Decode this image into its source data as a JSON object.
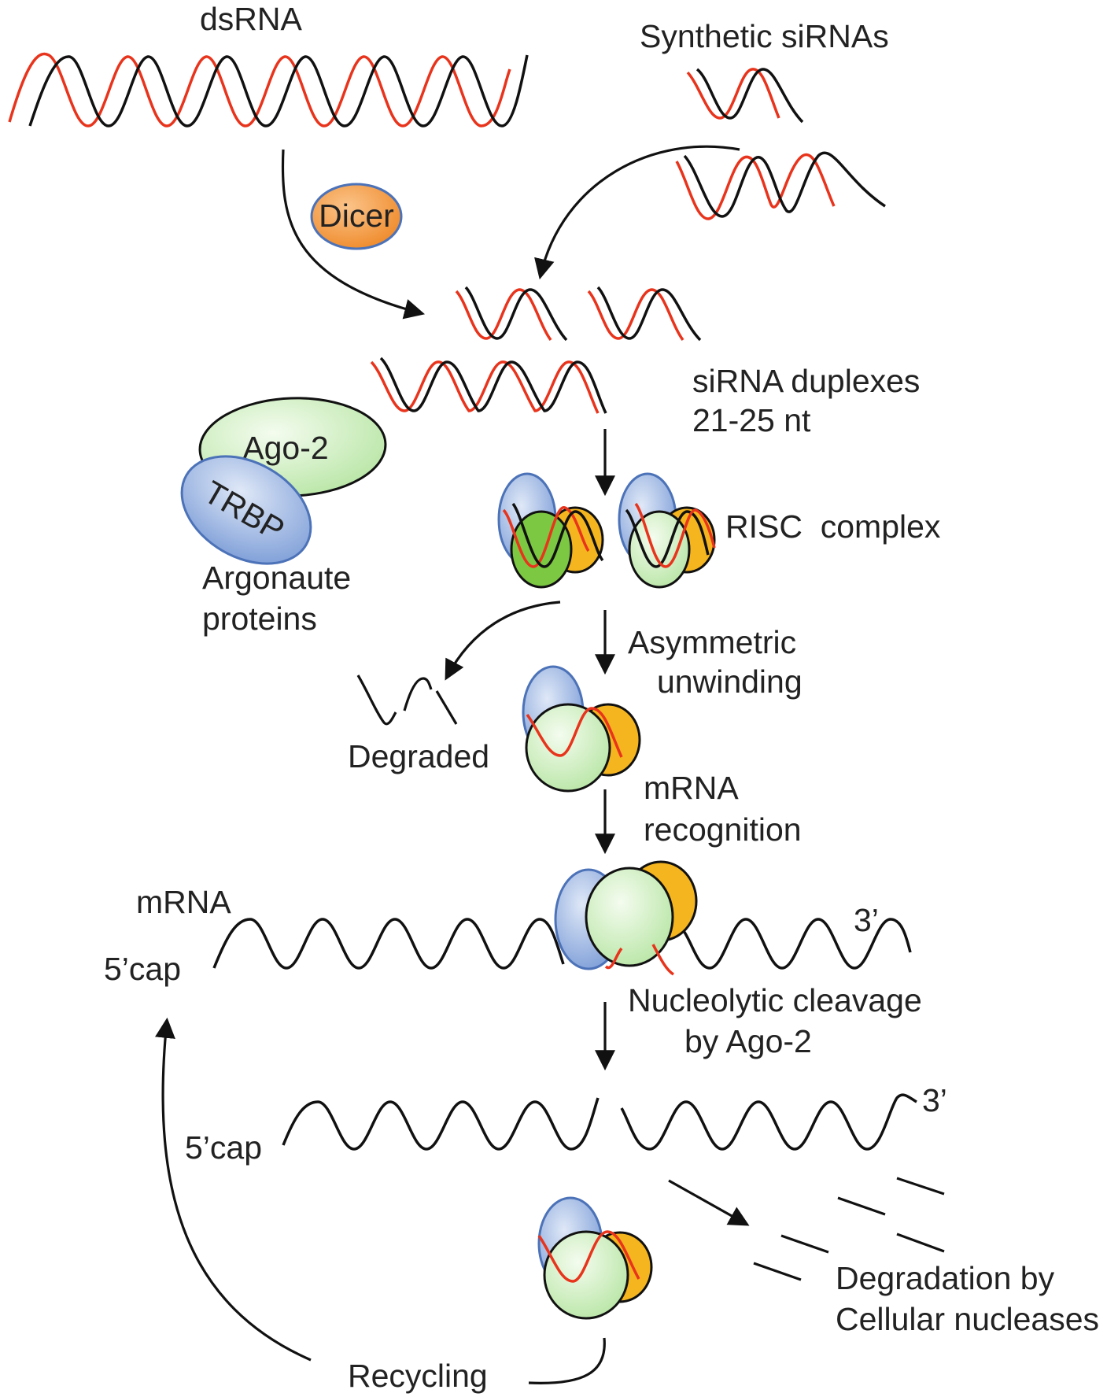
{
  "labels": {
    "dsrna": "dsRNA",
    "synthetic_sirnas": "Synthetic siRNAs",
    "dicer": "Dicer",
    "sirna_duplexes_1": "siRNA duplexes",
    "sirna_duplexes_2": "21-25 nt",
    "ago2": "Ago-2",
    "trbp": "TRBP",
    "argonaute_1": "Argonaute",
    "argonaute_2": "proteins",
    "risc_complex": "RISC  complex",
    "asymmetric_1": "Asymmetric",
    "asymmetric_2": "unwinding",
    "degraded": "Degraded",
    "mrna_recognition_1": "mRNA",
    "mrna_recognition_2": "recognition",
    "mrna": "mRNA",
    "cap_top": "5’cap",
    "three_prime_top": "3’",
    "cleavage_1": "Nucleolytic cleavage",
    "cleavage_2": "by Ago-2",
    "cap_bottom": "5’cap",
    "three_prime_bottom": "3’",
    "degradation_1": "Degradation by",
    "degradation_2": "Cellular nucleases",
    "recycling": "Recycling"
  },
  "colors": {
    "strand_red": "#e8341c",
    "strand_black": "#111111",
    "trbp_blue": "#7f9fd8",
    "ago_green": "#c9edbb",
    "dark_green": "#7cc842",
    "orange": "#f5b51e",
    "dicer_orange": "#f39a3c"
  }
}
